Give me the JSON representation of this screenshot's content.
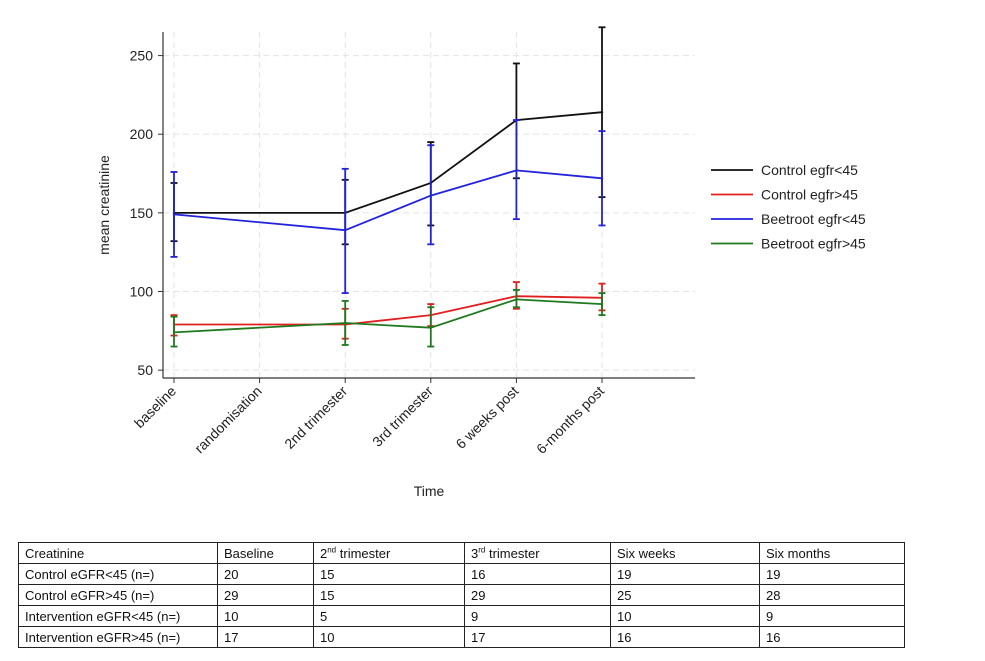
{
  "chart_data": {
    "type": "line",
    "xlabel": "Time",
    "ylabel": "mean creatinine",
    "ylim": [
      45,
      265
    ],
    "yticks": [
      50,
      100,
      150,
      200,
      250
    ],
    "categories": [
      "baseline",
      "randomisation",
      "2nd trimester",
      "3rd trimester",
      "6 weeks post",
      "6-months post"
    ],
    "grid": true,
    "legend_position": "right",
    "series": [
      {
        "name": "Control egfr<45",
        "color": "#111111",
        "points": [
          {
            "x": 0,
            "y": 150,
            "lo": 132,
            "hi": 169
          },
          {
            "x": 2,
            "y": 150,
            "lo": 130,
            "hi": 171
          },
          {
            "x": 3,
            "y": 169,
            "lo": 142,
            "hi": 195
          },
          {
            "x": 4,
            "y": 209,
            "lo": 172,
            "hi": 245
          },
          {
            "x": 5,
            "y": 214,
            "lo": 160,
            "hi": 268
          }
        ]
      },
      {
        "name": "Control egfr>45",
        "color": "#e02020",
        "points": [
          {
            "x": 0,
            "y": 79,
            "lo": 72,
            "hi": 85
          },
          {
            "x": 2,
            "y": 79,
            "lo": 70,
            "hi": 89
          },
          {
            "x": 3,
            "y": 85,
            "lo": 78,
            "hi": 92
          },
          {
            "x": 4,
            "y": 97,
            "lo": 89,
            "hi": 106
          },
          {
            "x": 5,
            "y": 96,
            "lo": 88,
            "hi": 105
          }
        ]
      },
      {
        "name": "Beetroot egfr<45",
        "color": "#2222dd",
        "points": [
          {
            "x": 0,
            "y": 149,
            "lo": 122,
            "hi": 176
          },
          {
            "x": 2,
            "y": 139,
            "lo": 99,
            "hi": 178
          },
          {
            "x": 3,
            "y": 161,
            "lo": 130,
            "hi": 193
          },
          {
            "x": 4,
            "y": 177,
            "lo": 146,
            "hi": 209
          },
          {
            "x": 5,
            "y": 172,
            "lo": 142,
            "hi": 202
          }
        ]
      },
      {
        "name": "Beetroot egfr>45",
        "color": "#1f7a1f",
        "points": [
          {
            "x": 0,
            "y": 74,
            "lo": 65,
            "hi": 84
          },
          {
            "x": 2,
            "y": 80,
            "lo": 66,
            "hi": 94
          },
          {
            "x": 3,
            "y": 77,
            "lo": 65,
            "hi": 90
          },
          {
            "x": 4,
            "y": 95,
            "lo": 90,
            "hi": 101
          },
          {
            "x": 5,
            "y": 92,
            "lo": 85,
            "hi": 99
          }
        ]
      }
    ]
  },
  "table": {
    "header": [
      "Creatinine",
      "Baseline",
      "",
      "",
      "Six weeks",
      "Six months"
    ],
    "header_ord": {
      "c2_num": "2",
      "c2_sup": "nd",
      "c2_rest": " trimester",
      "c3_num": "3",
      "c3_sup": "rd",
      "c3_rest": " trimester"
    },
    "rows": [
      [
        "Control eGFR<45 (n=)",
        "20",
        "15",
        "16",
        "19",
        "19"
      ],
      [
        "Control eGFR>45 (n=)",
        "29",
        "15",
        "29",
        "25",
        "28"
      ],
      [
        "Intervention eGFR<45 (n=)",
        "10",
        "5",
        "9",
        "10",
        "9"
      ],
      [
        "Intervention eGFR>45 (n=)",
        "17",
        "10",
        "17",
        "16",
        "16"
      ]
    ]
  }
}
